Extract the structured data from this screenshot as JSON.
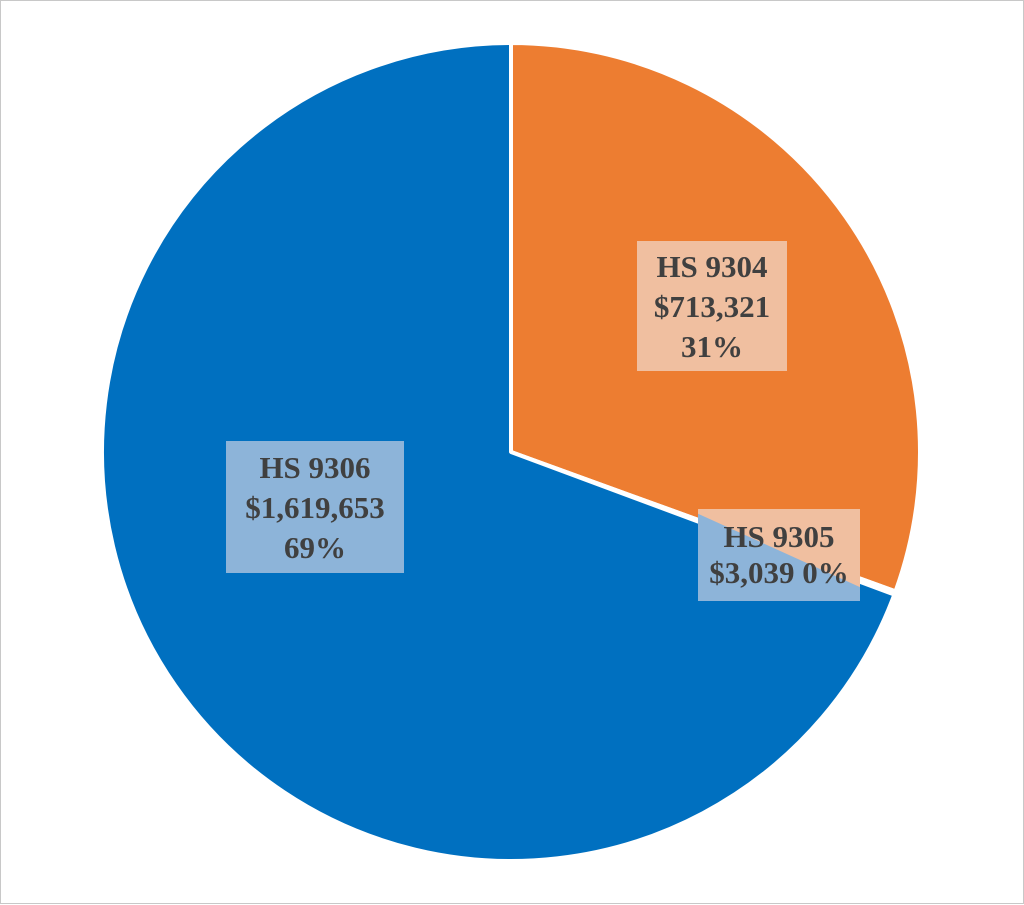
{
  "chart_data": {
    "type": "pie",
    "start_angle_deg": 0,
    "direction": "clockwise",
    "colors": {
      "slice_9304": "#ED7D31",
      "slice_9305": "#ED7D31",
      "slice_9306": "#0070C0",
      "label_box_orange": "#F0BFA0",
      "label_box_blue": "#8DB4D9",
      "separator": "#ffffff",
      "label_text": "#404040"
    },
    "slices": [
      {
        "category": "HS 9304",
        "value": 713321,
        "value_label": "$713,321",
        "percent_label": "31%",
        "color": "#ED7D31"
      },
      {
        "category": "HS 9305",
        "value": 3039,
        "value_label": "$3,039",
        "percent_label": "0%",
        "color": "#ED7D31"
      },
      {
        "category": "HS 9306",
        "value": 1619653,
        "value_label": "$1,619,653",
        "percent_label": "69%",
        "color": "#0070C0"
      }
    ]
  }
}
